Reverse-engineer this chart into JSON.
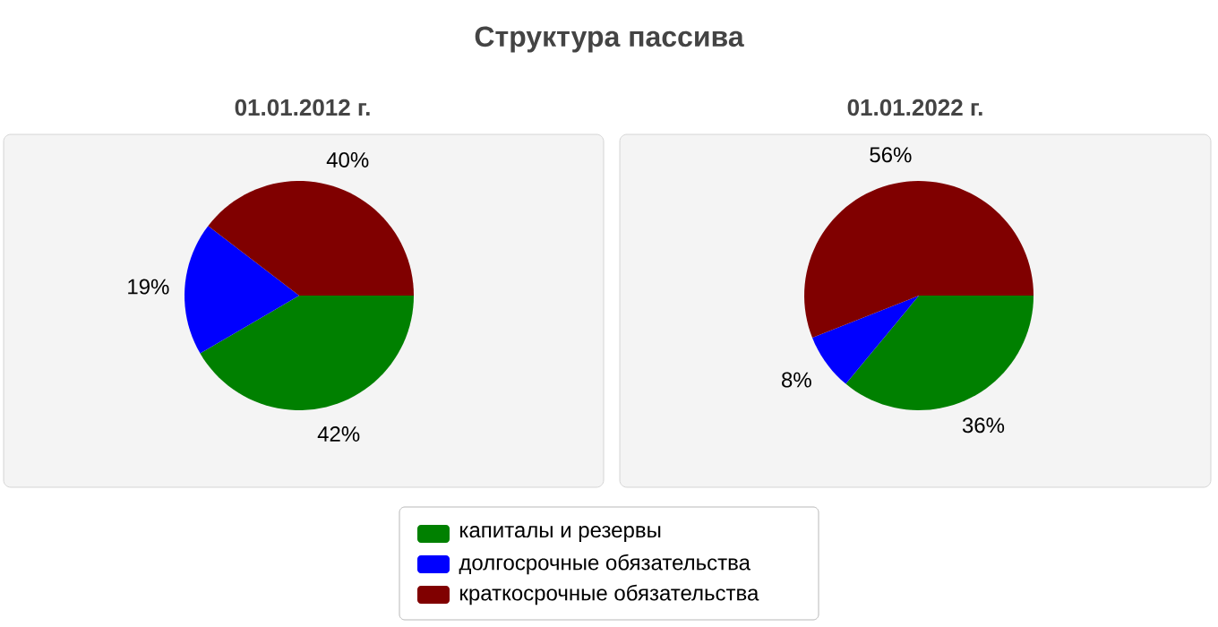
{
  "chart_data": [
    {
      "type": "pie",
      "title": "Структура пассива",
      "subtitle": "01.01.2012 г.",
      "categories": [
        "капиталы и резервы",
        "долгосрочные обязательства",
        "краткосрочные обязательства"
      ],
      "values": [
        42,
        19,
        40
      ],
      "value_labels": [
        "42%",
        "19%",
        "40%"
      ],
      "colors": [
        "#008000",
        "#0000ff",
        "#800000"
      ],
      "legend": "bottom"
    },
    {
      "type": "pie",
      "title": "01.01.2022 г.",
      "values": [
        36,
        8,
        56
      ],
      "value_labels": [
        "36%",
        "8%",
        "56%"
      ],
      "colors": [
        "#008000",
        "#0000ff",
        "#800000"
      ],
      "categories": [
        null,
        null,
        null
      ]
    }
  ]
}
